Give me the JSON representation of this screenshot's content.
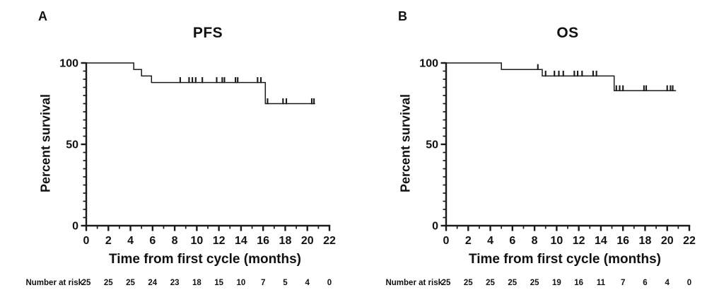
{
  "figure": {
    "background_color": "#ffffff",
    "line_color": "#1a1a1a"
  },
  "chart_data": [
    {
      "type": "line",
      "subtype": "kaplan-meier-step",
      "panel_letter": "A",
      "title": "PFS",
      "xlabel": "Time from first cycle (months)",
      "ylabel": "Percent survival",
      "xlim": [
        0,
        22
      ],
      "ylim": [
        0,
        100
      ],
      "xticks_major": [
        0,
        2,
        4,
        6,
        8,
        10,
        12,
        14,
        16,
        18,
        20,
        22
      ],
      "xticks_minor": [
        1,
        3,
        5,
        7,
        9,
        11,
        13,
        15,
        17,
        19,
        21
      ],
      "yticks_major": [
        0,
        50,
        100
      ],
      "ytick_minor_step": 5,
      "grid": false,
      "legend": "none",
      "series": [
        {
          "name": "PFS",
          "points": [
            [
              0,
              100
            ],
            [
              4.3,
              100
            ],
            [
              4.3,
              96
            ],
            [
              5.0,
              96
            ],
            [
              5.0,
              92
            ],
            [
              5.9,
              92
            ],
            [
              5.9,
              88
            ],
            [
              16.2,
              88
            ],
            [
              16.2,
              75
            ],
            [
              20.7,
              75
            ]
          ]
        }
      ],
      "censor_marks": [
        {
          "y": 88,
          "x": [
            8.5,
            9.3,
            9.6,
            9.9,
            10.5,
            11.8,
            12.3,
            12.5,
            13.5,
            13.7,
            15.5,
            15.8
          ]
        },
        {
          "y": 75,
          "x": [
            16.4,
            17.8,
            18.1,
            20.4,
            20.6
          ]
        }
      ],
      "number_at_risk": {
        "label": "Number at risk",
        "times": [
          0,
          2,
          4,
          6,
          8,
          10,
          12,
          14,
          16,
          18,
          20,
          22
        ],
        "counts": [
          25,
          25,
          25,
          24,
          23,
          18,
          15,
          10,
          7,
          5,
          4,
          0
        ]
      }
    },
    {
      "type": "line",
      "subtype": "kaplan-meier-step",
      "panel_letter": "B",
      "title": "OS",
      "xlabel": "Time from first cycle (months)",
      "ylabel": "Percent survival",
      "xlim": [
        0,
        22
      ],
      "ylim": [
        0,
        100
      ],
      "xticks_major": [
        0,
        2,
        4,
        6,
        8,
        10,
        12,
        14,
        16,
        18,
        20,
        22
      ],
      "xticks_minor": [
        1,
        3,
        5,
        7,
        9,
        11,
        13,
        15,
        17,
        19,
        21
      ],
      "yticks_major": [
        0,
        50,
        100
      ],
      "ytick_minor_step": 5,
      "grid": false,
      "legend": "none",
      "series": [
        {
          "name": "OS",
          "points": [
            [
              0,
              100
            ],
            [
              5.0,
              100
            ],
            [
              5.0,
              96
            ],
            [
              8.7,
              96
            ],
            [
              8.7,
              92
            ],
            [
              15.2,
              92
            ],
            [
              15.2,
              83
            ],
            [
              20.8,
              83
            ]
          ]
        }
      ],
      "censor_marks": [
        {
          "y": 96,
          "x": [
            8.3
          ]
        },
        {
          "y": 92,
          "x": [
            9.0,
            9.8,
            10.2,
            10.6,
            11.6,
            11.9,
            12.3,
            13.3,
            13.6
          ]
        },
        {
          "y": 83,
          "x": [
            15.4,
            15.7,
            16.0,
            17.9,
            18.1,
            20.0,
            20.3,
            20.5
          ]
        }
      ],
      "number_at_risk": {
        "label": "Number at risk",
        "times": [
          0,
          2,
          4,
          6,
          8,
          10,
          12,
          14,
          16,
          18,
          20,
          22
        ],
        "counts": [
          25,
          25,
          25,
          25,
          25,
          19,
          16,
          11,
          7,
          6,
          4,
          0
        ]
      }
    }
  ]
}
